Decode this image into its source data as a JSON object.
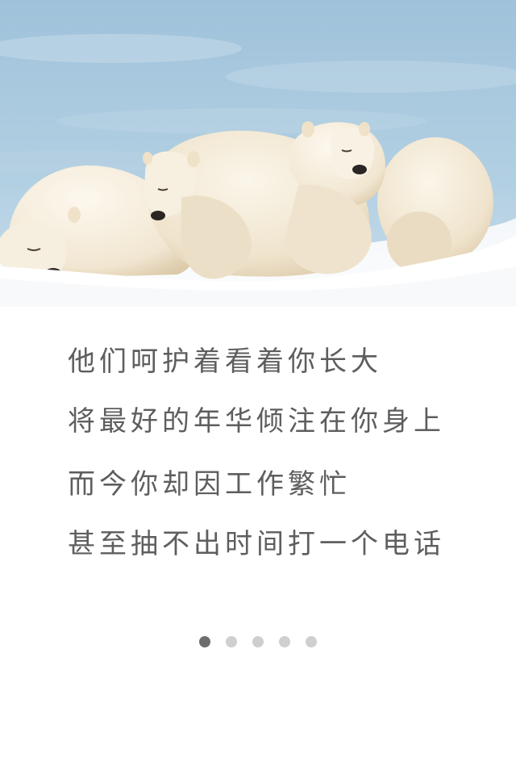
{
  "poem": {
    "stanzas": [
      {
        "lines": [
          "他们呵护着看着你长大",
          "将最好的年华倾注在你身上"
        ]
      },
      {
        "lines": [
          "而今你却因工作繁忙",
          "甚至抽不出时间打一个电话"
        ]
      }
    ]
  },
  "pager": {
    "count": 5,
    "active_index": 0,
    "active_color": "#6d6d6d",
    "inactive_color": "#cfcfcf"
  },
  "colors": {
    "sky": "#a7c8de",
    "snow": "#ffffff",
    "bear_fur": "#f3e9d6",
    "text": "#5e5e5e"
  }
}
